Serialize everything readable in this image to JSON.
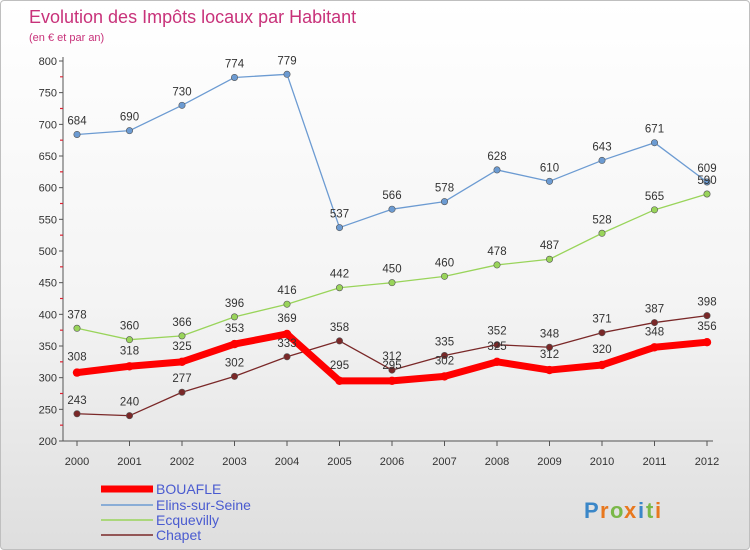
{
  "chart_data": {
    "type": "line",
    "title": "Evolution des Impôts locaux par Habitant",
    "subtitle": "(en € et par an)",
    "xlabel": "",
    "ylabel": "",
    "categories": [
      "2000",
      "2001",
      "2002",
      "2003",
      "2004",
      "2005",
      "2006",
      "2007",
      "2008",
      "2009",
      "2010",
      "2011",
      "2012"
    ],
    "ylim": [
      200,
      800
    ],
    "yticks": [
      200,
      250,
      300,
      350,
      400,
      450,
      500,
      550,
      600,
      650,
      700,
      750,
      800
    ],
    "grid": false,
    "legend_position": "bottom-left",
    "series": [
      {
        "name": "BOUAFLE",
        "color": "#ff0000",
        "values": [
          308,
          318,
          325,
          353,
          369,
          295,
          295,
          302,
          325,
          312,
          320,
          348,
          356
        ]
      },
      {
        "name": "Elins-sur-Seine",
        "color": "#6c9bd2",
        "values": [
          684,
          690,
          730,
          774,
          779,
          537,
          566,
          578,
          628,
          610,
          643,
          671,
          609
        ]
      },
      {
        "name": "Ecquevilly",
        "color": "#99d45a",
        "values": [
          378,
          360,
          366,
          396,
          416,
          442,
          450,
          460,
          478,
          487,
          528,
          565,
          590
        ]
      },
      {
        "name": "Chapet",
        "color": "#7a2828",
        "values": [
          243,
          240,
          277,
          302,
          333,
          358,
          312,
          335,
          352,
          348,
          371,
          387,
          398
        ]
      }
    ]
  },
  "logo": {
    "letters": [
      "P",
      "r",
      "o",
      "x",
      "i",
      "t",
      "i"
    ],
    "colors": [
      "#3b87c8",
      "#e8781e",
      "#7ab848",
      "#e8781e",
      "#3b87c8",
      "#7ab848",
      "#e8781e"
    ]
  }
}
